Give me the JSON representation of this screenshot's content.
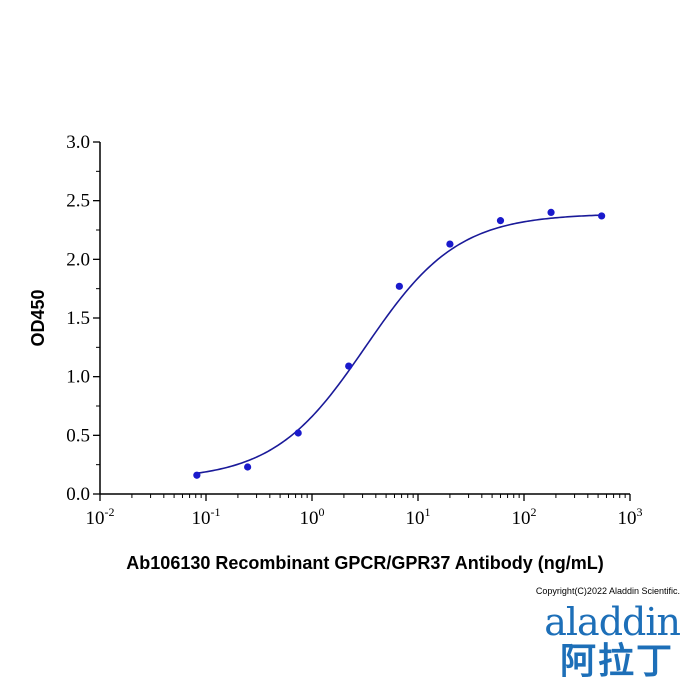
{
  "chart_data": {
    "type": "scatter",
    "title": "",
    "xlabel": "Ab106130 Recombinant GPCR/GPR37 Antibody (ng/mL)",
    "ylabel": "OD450",
    "x_scale": "log",
    "xlim": [
      0.01,
      1000
    ],
    "ylim": [
      0,
      3.0
    ],
    "x_ticks": [
      {
        "base": "10",
        "exp": "-2"
      },
      {
        "base": "10",
        "exp": "-1"
      },
      {
        "base": "10",
        "exp": "0"
      },
      {
        "base": "10",
        "exp": "1"
      },
      {
        "base": "10",
        "exp": "2"
      },
      {
        "base": "10",
        "exp": "3"
      }
    ],
    "y_ticks": [
      "0.0",
      "0.5",
      "1.0",
      "1.5",
      "2.0",
      "2.5",
      "3.0"
    ],
    "grid": false,
    "marker_color": "#1a1acc",
    "series": [
      {
        "x": [
          0.082,
          0.247,
          0.741,
          2.22,
          6.67,
          20,
          60,
          180,
          540
        ],
        "y": [
          0.16,
          0.23,
          0.52,
          1.09,
          1.77,
          2.13,
          2.33,
          2.4,
          2.37
        ]
      }
    ],
    "fit": {
      "type": "4PL",
      "bottom": 0.12,
      "top": 2.39,
      "ec50": 3.2,
      "hill": 1.0,
      "line_color": "#1a1a99"
    }
  },
  "copyright": "Copyright(C)2022 Aladdin Scientific.",
  "logo": {
    "text": "aladdin",
    "cn_text": "阿拉丁",
    "color": "#1d6fb8"
  }
}
